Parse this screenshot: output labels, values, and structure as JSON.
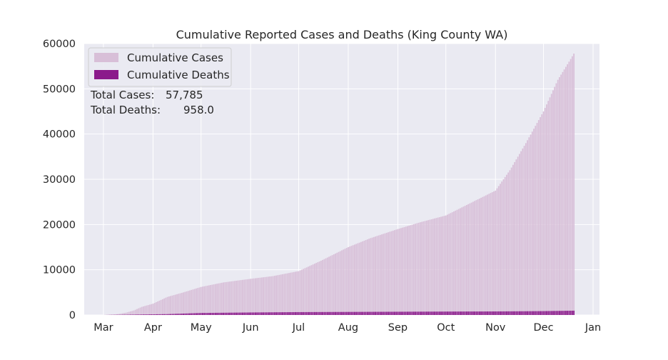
{
  "chart_data": {
    "type": "bar",
    "title": "Cumulative Reported Cases and Deaths (King County WA)",
    "xlabel": "",
    "ylabel": "",
    "x_ticks": [
      "Mar",
      "Apr",
      "May",
      "Jun",
      "Jul",
      "Aug",
      "Sep",
      "Oct",
      "Nov",
      "Dec",
      "Jan"
    ],
    "y_ticks": [
      "0",
      "10000",
      "20000",
      "30000",
      "40000",
      "50000",
      "60000"
    ],
    "ylim": [
      0,
      60000
    ],
    "xlim": [
      "2020-02-18",
      "2021-01-05"
    ],
    "grid": true,
    "legend_position": "top-left",
    "colors": {
      "cases": "#d8bfd8",
      "deaths": "#8b1a8b",
      "background": "#eaeaf2",
      "grid": "#ffffff"
    },
    "annotation": {
      "cases_label": "Total Cases:",
      "cases_value": "57,785",
      "deaths_label": "Total Deaths:",
      "deaths_value": "958.0"
    },
    "series": [
      {
        "name": "Cumulative Cases",
        "points": [
          [
            "2020-03-01",
            10
          ],
          [
            "2020-03-10",
            200
          ],
          [
            "2020-03-15",
            500
          ],
          [
            "2020-03-20",
            1000
          ],
          [
            "2020-03-25",
            1800
          ],
          [
            "2020-04-01",
            2500
          ],
          [
            "2020-04-10",
            4000
          ],
          [
            "2020-04-20",
            5000
          ],
          [
            "2020-05-01",
            6200
          ],
          [
            "2020-05-15",
            7200
          ],
          [
            "2020-06-01",
            8000
          ],
          [
            "2020-06-15",
            8600
          ],
          [
            "2020-07-01",
            9700
          ],
          [
            "2020-07-15",
            12000
          ],
          [
            "2020-08-01",
            15000
          ],
          [
            "2020-08-15",
            17000
          ],
          [
            "2020-09-01",
            19000
          ],
          [
            "2020-09-15",
            20500
          ],
          [
            "2020-10-01",
            22000
          ],
          [
            "2020-10-15",
            24500
          ],
          [
            "2020-11-01",
            27500
          ],
          [
            "2020-11-10",
            32000
          ],
          [
            "2020-11-20",
            38000
          ],
          [
            "2020-12-01",
            45000
          ],
          [
            "2020-12-10",
            52000
          ],
          [
            "2020-12-17",
            56000
          ],
          [
            "2020-12-20",
            57785
          ]
        ]
      },
      {
        "name": "Cumulative Deaths",
        "points": [
          [
            "2020-03-01",
            0
          ],
          [
            "2020-04-10",
            200
          ],
          [
            "2020-05-01",
            450
          ],
          [
            "2020-06-01",
            560
          ],
          [
            "2020-07-01",
            640
          ],
          [
            "2020-08-01",
            680
          ],
          [
            "2020-09-01",
            720
          ],
          [
            "2020-10-01",
            760
          ],
          [
            "2020-11-01",
            790
          ],
          [
            "2020-12-01",
            860
          ],
          [
            "2020-12-20",
            958
          ]
        ]
      }
    ]
  }
}
